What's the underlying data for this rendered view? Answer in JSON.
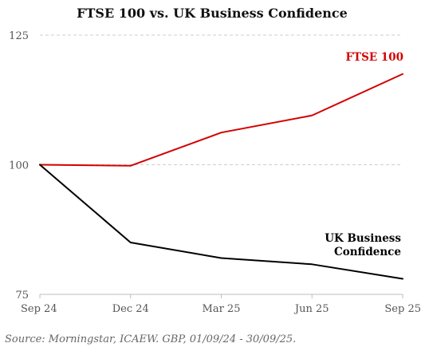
{
  "chart_data": {
    "type": "line",
    "title": "FTSE 100 vs. UK Business Confidence",
    "categories": [
      "Sep 24",
      "Dec 24",
      "Mar 25",
      "Jun 25",
      "Sep 25"
    ],
    "y_ticks": [
      "125",
      "100",
      "75"
    ],
    "y_tick_values": [
      125,
      100,
      75
    ],
    "ylim": [
      75,
      125
    ],
    "grid": true,
    "series": [
      {
        "name": "FTSE 100",
        "label_lines": [
          "FTSE 100"
        ],
        "color": "#d40000",
        "values": [
          100.0,
          99.8,
          106.2,
          109.5,
          117.5
        ]
      },
      {
        "name": "UK Business Confidence",
        "label_lines": [
          "UK Business",
          "Confidence"
        ],
        "color": "#000000",
        "values": [
          100.0,
          85.0,
          82.0,
          80.8,
          78.0
        ]
      }
    ],
    "source": "Source: Morningstar, ICAEW. GBP,  01/09/24 - 30/09/25."
  }
}
